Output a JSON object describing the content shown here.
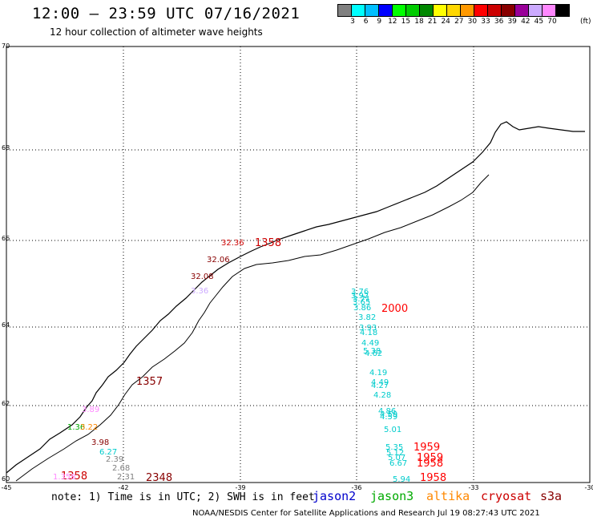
{
  "header": {
    "title": "12:00 – 23:59 UTC 07/16/2021",
    "subtitle": "12 hour collection of altimeter wave heights"
  },
  "scale": {
    "colors": [
      "#808080",
      "#00ffff",
      "#00bfff",
      "#0000ff",
      "#00ff00",
      "#00cc00",
      "#008800",
      "#ffff00",
      "#ffd700",
      "#ff9900",
      "#ff0000",
      "#cc0000",
      "#880000",
      "#990099",
      "#ccaaff",
      "#ff88ff",
      "#000000"
    ],
    "labels": [
      "3",
      "6",
      "9",
      "12",
      "15",
      "18",
      "21",
      "24",
      "27",
      "30",
      "33",
      "36",
      "39",
      "42",
      "45",
      "70"
    ],
    "unit": "(ft)"
  },
  "axes": {
    "x_ticks": [
      "-45",
      "-42",
      "-39",
      "-36",
      "-33",
      "-30"
    ],
    "y_ticks": [
      "70",
      "68",
      "66",
      "64",
      "62",
      "60"
    ]
  },
  "observations": {
    "cryosat_times": [
      "1358",
      "1357",
      "1358",
      "2348",
      "2000",
      "1959",
      "1959",
      "1958",
      "1958"
    ],
    "cyan_values": [
      "3.76",
      "3.92",
      "3.71",
      "3.65",
      "3.86",
      "3.82",
      "3.93",
      "4.18",
      "4.49",
      "4.62",
      "5.38",
      "4.19",
      "4.49",
      "4.27",
      "4.28",
      "4.86",
      "4.59",
      "4.59",
      "5.01",
      "5.35",
      "5.12",
      "5.07",
      "6.67",
      "5.94",
      "6.27"
    ],
    "misc_values": [
      "32.36",
      "32.06",
      "32.08",
      "1.36",
      "3.22",
      "3.98",
      "2.39",
      "2.68",
      "2.31",
      "1.358",
      "3.89",
      "3.36"
    ]
  },
  "footer": {
    "note": "note: 1) Time is in UTC; 2) SWH is in feet",
    "satellites": [
      {
        "name": "jason2",
        "color": "#0000cc"
      },
      {
        "name": "jason3",
        "color": "#00aa00"
      },
      {
        "name": "altika",
        "color": "#ff8800"
      },
      {
        "name": "cryosat",
        "color": "#cc0000"
      },
      {
        "name": "s3a",
        "color": "#880000"
      }
    ],
    "credit": "NOAA/NESDIS Center for Satellite Applications and Research   Jul 19 08:27:43 UTC 2021"
  }
}
